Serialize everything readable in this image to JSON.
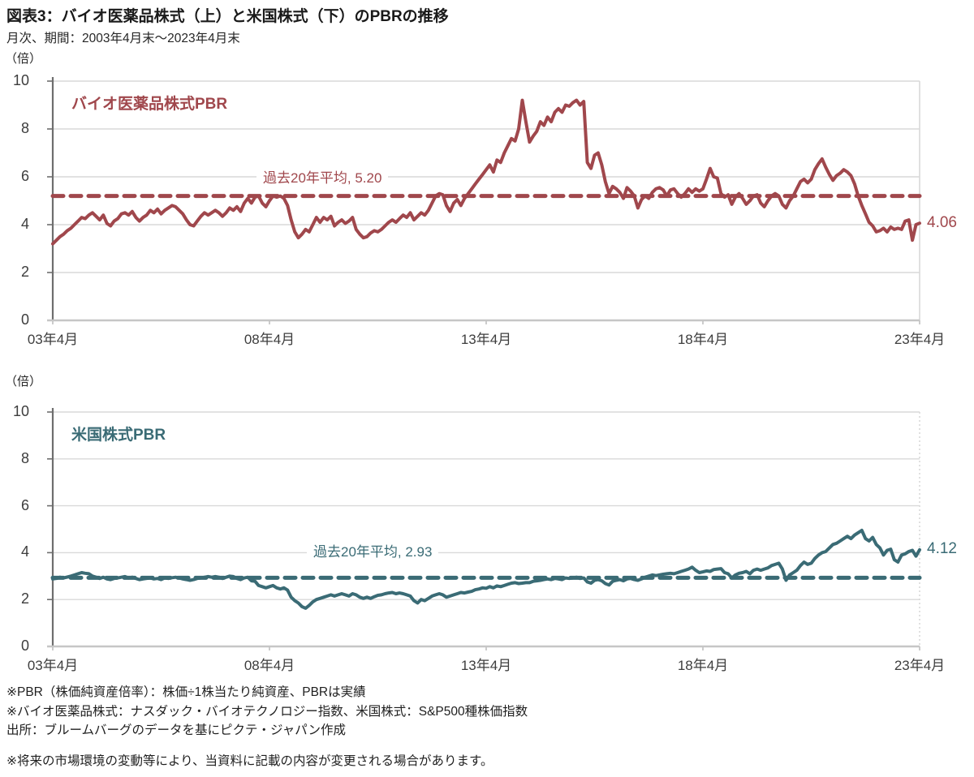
{
  "page": {
    "title": "図表3：バイオ医薬品株式（上）と米国株式（下）のPBRの推移",
    "subtitle": "月次、期間：2003年4月末～2023年4月末",
    "unit_label": "（倍）"
  },
  "colors": {
    "biotech": "#A0474C",
    "us_stock": "#3A6B75",
    "grid": "#D9D9D9",
    "axis_left": "#6E6E6E",
    "axis_bottom": "#C6C6C6",
    "tick_text": "#3D3D3D"
  },
  "footnotes": [
    "※PBR（株価純資産倍率）：株価÷1株当たり純資産、PBRは実績",
    "※バイオ医薬品株式：ナスダック・バイオテクノロジー指数、米国株式：S&P500種株価指数",
    "出所：ブルームバーグのデータを基にピクテ・ジャパン作成"
  ],
  "disclaimer": "※将来の市場環境の変動等により、当資料に記載の内容が変更される場合があります。",
  "chart_data": [
    {
      "type": "line",
      "title": "バイオ医薬品株式PBR",
      "frequency": "monthly",
      "x_range": [
        "2003-04",
        "2023-04"
      ],
      "x_tick_labels": [
        "03年4月",
        "08年4月",
        "13年4月",
        "18年4月",
        "23年4月"
      ],
      "ylim": [
        0,
        10
      ],
      "yticks": [
        0,
        2,
        4,
        6,
        8,
        10
      ],
      "grid": true,
      "average": 5.2,
      "average_label": "過去20年平均, 5.20",
      "end_value": 4.06,
      "end_label": "4.06",
      "color": "#A0474C",
      "values": [
        3.2,
        3.35,
        3.5,
        3.6,
        3.75,
        3.85,
        4.0,
        4.15,
        4.3,
        4.25,
        4.4,
        4.5,
        4.35,
        4.2,
        4.4,
        4.05,
        3.95,
        4.15,
        4.25,
        4.45,
        4.5,
        4.4,
        4.55,
        4.3,
        4.15,
        4.3,
        4.4,
        4.6,
        4.5,
        4.65,
        4.45,
        4.6,
        4.7,
        4.8,
        4.75,
        4.6,
        4.45,
        4.2,
        4.0,
        3.95,
        4.15,
        4.35,
        4.5,
        4.4,
        4.5,
        4.6,
        4.5,
        4.35,
        4.5,
        4.7,
        4.6,
        4.75,
        4.55,
        4.9,
        5.1,
        4.9,
        5.15,
        5.2,
        4.9,
        4.75,
        5.0,
        5.2,
        5.15,
        5.2,
        5.1,
        4.8,
        4.2,
        3.7,
        3.45,
        3.6,
        3.8,
        3.7,
        4.0,
        4.3,
        4.1,
        4.3,
        4.2,
        4.35,
        3.95,
        4.1,
        4.2,
        4.05,
        4.15,
        4.3,
        3.8,
        3.6,
        3.45,
        3.5,
        3.65,
        3.75,
        3.7,
        3.8,
        3.95,
        4.1,
        4.2,
        4.1,
        4.25,
        4.4,
        4.3,
        4.5,
        4.2,
        4.35,
        4.5,
        4.4,
        4.6,
        4.9,
        5.2,
        5.3,
        5.25,
        4.8,
        4.55,
        4.9,
        5.05,
        4.8,
        5.1,
        5.3,
        5.5,
        5.7,
        5.9,
        6.1,
        6.3,
        6.5,
        6.2,
        6.7,
        6.6,
        7.0,
        7.3,
        7.6,
        7.5,
        8.0,
        9.2,
        8.3,
        7.45,
        7.7,
        7.9,
        8.3,
        8.15,
        8.5,
        8.3,
        8.7,
        8.85,
        8.7,
        9.0,
        8.95,
        9.1,
        9.2,
        9.0,
        9.15,
        6.6,
        6.35,
        6.9,
        7.0,
        6.5,
        5.8,
        5.3,
        5.6,
        5.5,
        5.35,
        5.1,
        5.55,
        5.4,
        5.2,
        4.7,
        5.05,
        5.2,
        5.1,
        5.35,
        5.5,
        5.55,
        5.45,
        5.2,
        5.45,
        5.5,
        5.3,
        5.15,
        5.3,
        5.5,
        5.35,
        5.5,
        5.4,
        5.5,
        5.9,
        6.35,
        6.0,
        5.95,
        5.3,
        5.15,
        5.25,
        4.85,
        5.15,
        5.3,
        5.1,
        4.85,
        5.0,
        5.2,
        5.25,
        4.9,
        4.75,
        5.0,
        5.2,
        5.3,
        5.2,
        4.85,
        4.7,
        5.0,
        5.2,
        5.5,
        5.8,
        5.9,
        5.75,
        5.9,
        6.3,
        6.55,
        6.75,
        6.4,
        6.1,
        5.85,
        6.05,
        6.15,
        6.3,
        6.2,
        6.05,
        5.7,
        5.2,
        4.8,
        4.45,
        4.1,
        3.95,
        3.7,
        3.75,
        3.85,
        3.7,
        3.9,
        3.8,
        3.85,
        3.8,
        4.15,
        4.2,
        3.35,
        4.0,
        4.06
      ]
    },
    {
      "type": "line",
      "title": "米国株式PBR",
      "frequency": "monthly",
      "x_range": [
        "2003-04",
        "2023-04"
      ],
      "x_tick_labels": [
        "03年4月",
        "08年4月",
        "13年4月",
        "18年4月",
        "23年4月"
      ],
      "ylim": [
        0,
        10
      ],
      "yticks": [
        0,
        2,
        4,
        6,
        8,
        10
      ],
      "grid": true,
      "average": 2.93,
      "average_label": "過去20年平均, 2.93",
      "end_value": 4.12,
      "end_label": "4.12",
      "color": "#3A6B75",
      "values": [
        2.88,
        2.9,
        2.95,
        2.92,
        2.96,
        3.0,
        3.05,
        3.1,
        3.15,
        3.12,
        3.1,
        3.0,
        2.95,
        2.9,
        2.95,
        2.88,
        2.85,
        2.9,
        2.92,
        2.95,
        2.98,
        2.92,
        2.95,
        2.9,
        2.85,
        2.88,
        2.9,
        2.92,
        2.88,
        2.9,
        2.85,
        2.92,
        2.9,
        2.93,
        2.95,
        2.92,
        2.88,
        2.85,
        2.82,
        2.85,
        2.9,
        2.92,
        2.95,
        2.98,
        2.95,
        2.98,
        2.95,
        2.9,
        2.95,
        3.0,
        2.98,
        2.9,
        2.85,
        2.92,
        2.95,
        2.8,
        2.78,
        2.6,
        2.55,
        2.5,
        2.55,
        2.6,
        2.5,
        2.45,
        2.5,
        2.4,
        2.1,
        1.95,
        1.85,
        1.7,
        1.63,
        1.75,
        1.9,
        2.0,
        2.05,
        2.1,
        2.15,
        2.2,
        2.15,
        2.2,
        2.25,
        2.2,
        2.15,
        2.25,
        2.2,
        2.1,
        2.05,
        2.1,
        2.05,
        2.12,
        2.18,
        2.2,
        2.25,
        2.28,
        2.3,
        2.25,
        2.28,
        2.25,
        2.2,
        2.15,
        1.95,
        1.85,
        2.0,
        1.95,
        2.05,
        2.15,
        2.2,
        2.25,
        2.2,
        2.1,
        2.15,
        2.2,
        2.25,
        2.3,
        2.28,
        2.32,
        2.35,
        2.42,
        2.45,
        2.5,
        2.48,
        2.55,
        2.5,
        2.58,
        2.55,
        2.6,
        2.65,
        2.7,
        2.72,
        2.68,
        2.7,
        2.72,
        2.72,
        2.78,
        2.8,
        2.82,
        2.85,
        2.88,
        2.85,
        2.9,
        2.88,
        2.85,
        2.92,
        2.9,
        2.92,
        2.95,
        2.9,
        2.92,
        2.75,
        2.7,
        2.82,
        2.85,
        2.8,
        2.68,
        2.62,
        2.78,
        2.82,
        2.85,
        2.8,
        2.88,
        2.9,
        2.85,
        2.82,
        2.88,
        2.95,
        3.0,
        3.05,
        3.02,
        3.05,
        3.08,
        3.1,
        3.12,
        3.1,
        3.15,
        3.2,
        3.25,
        3.3,
        3.38,
        3.25,
        3.15,
        3.18,
        3.22,
        3.2,
        3.28,
        3.3,
        3.32,
        3.15,
        3.1,
        2.92,
        3.05,
        3.12,
        3.15,
        3.2,
        3.1,
        3.25,
        3.3,
        3.25,
        3.3,
        3.35,
        3.45,
        3.5,
        3.55,
        3.3,
        2.82,
        3.05,
        3.15,
        3.25,
        3.45,
        3.6,
        3.5,
        3.55,
        3.75,
        3.9,
        4.0,
        4.05,
        4.2,
        4.35,
        4.4,
        4.5,
        4.6,
        4.7,
        4.6,
        4.75,
        4.85,
        4.95,
        4.6,
        4.5,
        4.65,
        4.35,
        4.2,
        3.9,
        4.1,
        4.15,
        3.7,
        3.6,
        3.9,
        3.95,
        4.05,
        4.1,
        3.85,
        4.12
      ]
    }
  ]
}
